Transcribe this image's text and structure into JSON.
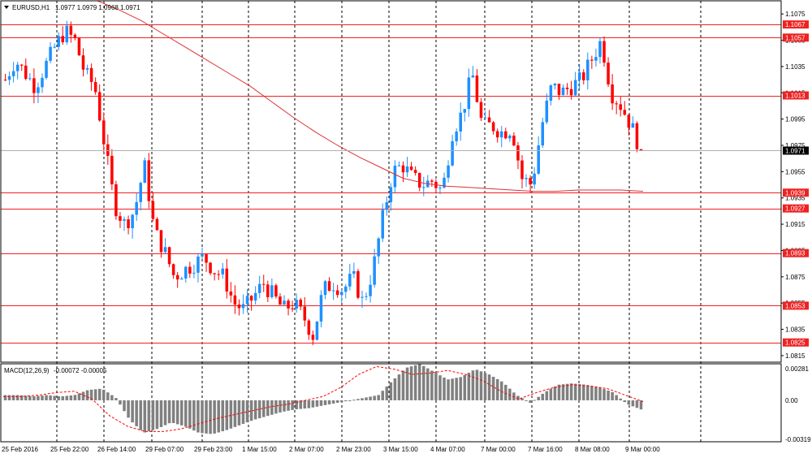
{
  "symbol_header": {
    "symbol": "EURUSD,H1",
    "ohlc": "1.0977 1.0979 1.0968 1.0971"
  },
  "macd_header": {
    "name": "MACD(12,26,9)",
    "values": "-0.00072 -0.00005"
  },
  "colors": {
    "bull": "#1e90ff",
    "bear": "#ff0000",
    "ma": "#dd3333",
    "level": "#ee2222",
    "hist": "#808080",
    "signal": "#ff0000",
    "current_price_line": "#b0b0b0"
  },
  "chart_data": [
    {
      "type": "candlestick",
      "title": "EURUSD,H1",
      "ylim": [
        1.081,
        1.1085
      ],
      "price_axis_ticks": [
        "1.1075",
        "1.1055",
        "1.1035",
        "1.1015",
        "1.0995",
        "1.0975",
        "1.0955",
        "1.0935",
        "1.0915",
        "1.0895",
        "1.0875",
        "1.0855",
        "1.0835",
        "1.0815"
      ],
      "time_labels": [
        "25 Feb 2016",
        "25 Feb 22:00",
        "26 Feb 14:00",
        "29 Feb 07:00",
        "29 Feb 23:00",
        "1 Mar 15:00",
        "2 Mar 07:00",
        "2 Mar 23:00",
        "3 Mar 15:00",
        "4 Mar 07:00",
        "7 Mar 00:00",
        "7 Mar 16:00",
        "8 Mar 08:00",
        "9 Mar 00:00"
      ],
      "grid": "vertical-dashed",
      "horizontal_levels": [
        "1.1067",
        "1.1057",
        "1.1013",
        "1.0939",
        "1.0927",
        "1.0893",
        "1.0853",
        "1.0825"
      ],
      "current_price": "1.0971",
      "price_path": [
        1.1025,
        1.104,
        1.103,
        1.102,
        1.1035,
        1.105,
        1.1062,
        1.1055,
        1.103,
        1.102,
        1.0975,
        1.093,
        1.0915,
        1.0925,
        1.096,
        1.091,
        1.0895,
        1.0875,
        1.088,
        1.0885,
        1.089,
        1.088,
        1.0875,
        1.0855,
        1.085,
        1.086,
        1.087,
        1.086,
        1.085,
        1.0855,
        1.0845,
        1.083,
        1.0865,
        1.087,
        1.0865,
        1.0875,
        1.0855,
        1.088,
        1.092,
        1.0955,
        1.096,
        1.095,
        1.0945,
        1.0948,
        1.094,
        1.0985,
        1.1,
        1.103,
        1.099,
        1.099,
        1.0985,
        1.0988,
        1.095,
        1.0945,
        1.099,
        1.102,
        1.1015,
        1.102,
        1.1025,
        1.104,
        1.1055,
        1.1015,
        1.1005,
        1.099,
        1.0971
      ],
      "moving_average_path": [
        1.1085,
        1.1078,
        1.107,
        1.106,
        1.105,
        1.104,
        1.103,
        1.102,
        1.1008,
        1.0996,
        1.0985,
        1.0975,
        1.0966,
        1.0958,
        1.095,
        1.0946,
        1.0944,
        1.0943,
        1.0942,
        1.0941,
        1.094,
        1.094,
        1.0941,
        1.0941,
        1.0941,
        1.094
      ]
    },
    {
      "type": "bar",
      "title": "MACD(12,26,9)",
      "ylim": [
        -0.00319,
        0.00281
      ],
      "axis_ticks": [
        "0.00281",
        "0.00",
        "-0.00319"
      ],
      "histogram_path": [
        0.0004,
        0.0004,
        0.0003,
        0.0004,
        0.0003,
        0.0004,
        0.0008,
        0.0009,
        0.0002,
        -0.0015,
        -0.0025,
        -0.0022,
        -0.0017,
        -0.002,
        -0.0025,
        -0.0026,
        -0.0023,
        -0.0019,
        -0.0015,
        -0.0012,
        -0.0009,
        -0.0007,
        -0.0006,
        -0.0004,
        -0.0002,
        0.0,
        0.0002,
        0.0004,
        0.0015,
        0.0025,
        0.0028,
        0.0022,
        0.0016,
        0.0018,
        0.0024,
        0.002,
        0.0014,
        0.0004,
        -0.0002,
        0.0006,
        0.0012,
        0.0013,
        0.0012,
        0.001,
        0.0006,
        -0.0003,
        -0.0007
      ],
      "signal_path": [
        0.0003,
        0.0003,
        0.0004,
        0.0006,
        0.0007,
        0.0001,
        -0.0012,
        -0.002,
        -0.0024,
        -0.0024,
        -0.0022,
        -0.0018,
        -0.0014,
        -0.0011,
        -0.0008,
        -0.0005,
        -0.0003,
        0.0,
        0.0003,
        0.001,
        0.002,
        0.0026,
        0.0024,
        0.002,
        0.0021,
        0.0023,
        0.002,
        0.0015,
        0.0007,
        0.0001,
        0.0006,
        0.001,
        0.0012,
        0.0011,
        0.0009,
        0.0004,
        -0.0001
      ]
    }
  ]
}
